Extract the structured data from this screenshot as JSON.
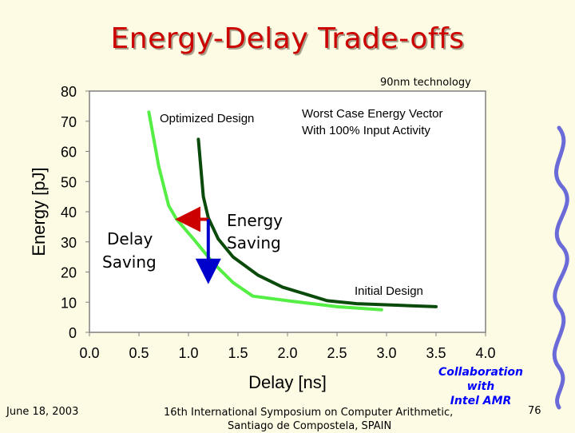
{
  "slide": {
    "title": "Energy-Delay Trade-offs",
    "tech_note": "90nm technology",
    "footer_date": "June 18, 2003",
    "footer_conf_line1": "16th International Symposium on Computer Arithmetic,",
    "footer_conf_line2": "Santiago de Compostela, SPAIN",
    "collab_line1": "Collaboration",
    "collab_line2": "with",
    "collab_line3": "Intel AMR",
    "page_number": "76"
  },
  "chart_data": {
    "type": "line",
    "xlabel": "Delay [ns]",
    "ylabel": "Energy [pJ]",
    "xlim": [
      0.0,
      4.0
    ],
    "ylim": [
      0,
      80
    ],
    "x_ticks": [
      "0.0",
      "0.5",
      "1.0",
      "1.5",
      "2.0",
      "2.5",
      "3.0",
      "3.5",
      "4.0"
    ],
    "y_ticks": [
      "0",
      "10",
      "20",
      "30",
      "40",
      "50",
      "60",
      "70",
      "80"
    ],
    "grid": false,
    "series": [
      {
        "name": "Optimized Design",
        "color": "#55ee44",
        "points": [
          [
            0.6,
            73
          ],
          [
            0.7,
            55
          ],
          [
            0.8,
            42
          ],
          [
            0.88,
            37.5
          ],
          [
            1.05,
            31
          ],
          [
            1.25,
            23
          ],
          [
            1.45,
            16.5
          ],
          [
            1.65,
            12
          ],
          [
            2.0,
            10.5
          ],
          [
            2.5,
            8.5
          ],
          [
            2.95,
            7.5
          ]
        ]
      },
      {
        "name": "Initial Design",
        "color": "#0a4a0a",
        "points": [
          [
            1.1,
            64
          ],
          [
            1.15,
            45
          ],
          [
            1.2,
            38
          ],
          [
            1.3,
            31
          ],
          [
            1.45,
            25
          ],
          [
            1.7,
            19
          ],
          [
            1.95,
            15
          ],
          [
            2.2,
            12.5
          ],
          [
            2.4,
            10.5
          ],
          [
            2.7,
            9.5
          ],
          [
            3.1,
            9
          ],
          [
            3.5,
            8.5
          ]
        ]
      }
    ],
    "annotations": {
      "optimized_label": "Optimized Design",
      "worst_case_line1": "Worst Case Energy Vector",
      "worst_case_line2": "With 100% Input Activity",
      "energy_saving_line1": "Energy",
      "energy_saving_line2": "Saving",
      "delay_saving_line1": "Delay",
      "delay_saving_line2": "Saving",
      "initial_label": "Initial Design"
    },
    "delay_arrow": {
      "from": [
        1.2,
        37.5
      ],
      "to": [
        0.88,
        37.5
      ],
      "color": "#cc0000"
    },
    "energy_arrow": {
      "from": [
        1.2,
        37.5
      ],
      "to": [
        1.2,
        16.5
      ],
      "color": "#0000cc"
    }
  }
}
